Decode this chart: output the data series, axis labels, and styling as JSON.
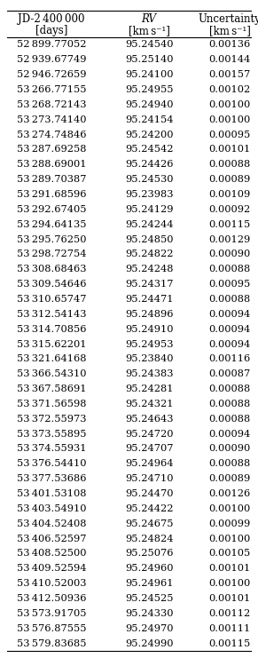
{
  "col1_header": [
    "JD-2 400 000",
    "[days]"
  ],
  "col2_header": [
    "RV",
    "[km s⁻¹]"
  ],
  "col3_header": [
    "Uncertainty",
    "[km s⁻¹]"
  ],
  "col2_header_italic": true,
  "rows": [
    [
      "52 899.77052",
      "95.24540",
      "0.00136"
    ],
    [
      "52 939.67749",
      "95.25140",
      "0.00144"
    ],
    [
      "52 946.72659",
      "95.24100",
      "0.00157"
    ],
    [
      "53 266.77155",
      "95.24955",
      "0.00102"
    ],
    [
      "53 268.72143",
      "95.24940",
      "0.00100"
    ],
    [
      "53 273.74140",
      "95.24154",
      "0.00100"
    ],
    [
      "53 274.74846",
      "95.24200",
      "0.00095"
    ],
    [
      "53 287.69258",
      "95.24542",
      "0.00101"
    ],
    [
      "53 288.69001",
      "95.24426",
      "0.00088"
    ],
    [
      "53 289.70387",
      "95.24530",
      "0.00089"
    ],
    [
      "53 291.68596",
      "95.23983",
      "0.00109"
    ],
    [
      "53 292.67405",
      "95.24129",
      "0.00092"
    ],
    [
      "53 294.64135",
      "95.24244",
      "0.00115"
    ],
    [
      "53 295.76250",
      "95.24850",
      "0.00129"
    ],
    [
      "53 298.72754",
      "95.24822",
      "0.00090"
    ],
    [
      "53 308.68463",
      "95.24248",
      "0.00088"
    ],
    [
      "53 309.54646",
      "95.24317",
      "0.00095"
    ],
    [
      "53 310.65747",
      "95.24471",
      "0.00088"
    ],
    [
      "53 312.54143",
      "95.24896",
      "0.00094"
    ],
    [
      "53 314.70856",
      "95.24910",
      "0.00094"
    ],
    [
      "53 315.62201",
      "95.24953",
      "0.00094"
    ],
    [
      "53 321.64168",
      "95.23840",
      "0.00116"
    ],
    [
      "53 366.54310",
      "95.24383",
      "0.00087"
    ],
    [
      "53 367.58691",
      "95.24281",
      "0.00088"
    ],
    [
      "53 371.56598",
      "95.24321",
      "0.00088"
    ],
    [
      "53 372.55973",
      "95.24643",
      "0.00088"
    ],
    [
      "53 373.55895",
      "95.24720",
      "0.00094"
    ],
    [
      "53 374.55931",
      "95.24707",
      "0.00090"
    ],
    [
      "53 376.54410",
      "95.24964",
      "0.00088"
    ],
    [
      "53 377.53686",
      "95.24710",
      "0.00089"
    ],
    [
      "53 401.53108",
      "95.24470",
      "0.00126"
    ],
    [
      "53 403.54910",
      "95.24422",
      "0.00100"
    ],
    [
      "53 404.52408",
      "95.24675",
      "0.00099"
    ],
    [
      "53 406.52597",
      "95.24824",
      "0.00100"
    ],
    [
      "53 408.52500",
      "95.25076",
      "0.00105"
    ],
    [
      "53 409.52594",
      "95.24960",
      "0.00101"
    ],
    [
      "53 410.52003",
      "95.24961",
      "0.00100"
    ],
    [
      "53 412.50936",
      "95.24525",
      "0.00101"
    ],
    [
      "53 573.91705",
      "95.24330",
      "0.00112"
    ],
    [
      "53 576.87555",
      "95.24970",
      "0.00111"
    ],
    [
      "53 579.83685",
      "95.24990",
      "0.00115"
    ]
  ],
  "bg_color": "#ffffff",
  "text_color": "#000000",
  "header_fontsize": 8.5,
  "data_fontsize": 8.2,
  "line_width": 0.8
}
